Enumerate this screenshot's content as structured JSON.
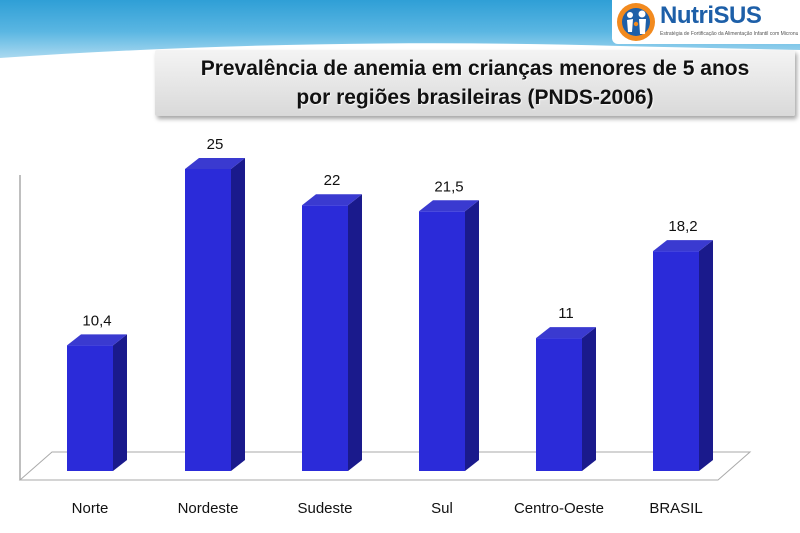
{
  "header": {
    "logo_text": "NutriSUS",
    "logo_tagline": "Estratégia de Fortificação da Alimentação Infantil com Micronutrientes em Pó"
  },
  "title": {
    "line1": "Prevalência de anemia em crianças menores de 5 anos",
    "line2": "por regiões brasileiras (PNDS-2006)"
  },
  "colors": {
    "bar_front": "#2b2bd9",
    "bar_side": "#1a1a8c",
    "bar_top": "#3a3ad0",
    "floor": "#ffffff",
    "axis": "#aaaaaa"
  },
  "chart_data": {
    "type": "bar",
    "title": "Prevalência de anemia em crianças menores de 5 anos por regiões brasileiras (PNDS-2006)",
    "categories": [
      "Norte",
      "Nordeste",
      "Sudeste",
      "Sul",
      "Centro-Oeste",
      "BRASIL"
    ],
    "values": [
      10.4,
      25,
      22,
      21.5,
      11,
      18.2
    ],
    "value_labels": [
      "10,4",
      "25",
      "22",
      "21,5",
      "11",
      "18,2"
    ],
    "xlabel": "",
    "ylabel": "",
    "ylim": [
      0,
      25
    ],
    "grid": false,
    "style": "3d-column"
  }
}
